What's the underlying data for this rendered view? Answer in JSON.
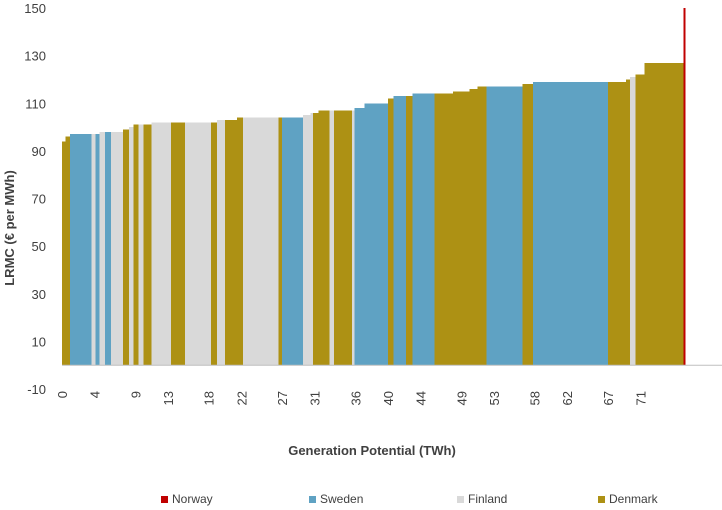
{
  "chart_data": {
    "type": "bar",
    "title": "",
    "xlabel": "Generation Potential (TWh)",
    "ylabel": "LRMC (€ per MWh)",
    "ylim": [
      -10,
      150
    ],
    "yticks": [
      -10,
      10,
      30,
      50,
      70,
      90,
      110,
      130,
      150
    ],
    "xlim": [
      0,
      81
    ],
    "xticks": [
      "0",
      "4",
      "9",
      "13",
      "18",
      "22",
      "27",
      "31",
      "36",
      "40",
      "44",
      "49",
      "53",
      "58",
      "62",
      "67",
      "71"
    ],
    "grid": false,
    "legend_position": "bottom",
    "colors": {
      "Norway": "#c00000",
      "Sweden": "#5fa2c3",
      "Finland": "#d9d9d9",
      "Denmark": "#ad9114"
    },
    "series": [
      {
        "name": "Norway"
      },
      {
        "name": "Sweden"
      },
      {
        "name": "Finland"
      },
      {
        "name": "Denmark"
      }
    ],
    "segments": [
      {
        "country": "Denmark",
        "x0": 0.0,
        "x1": 0.4,
        "lrmc": 94
      },
      {
        "country": "Denmark",
        "x0": 0.4,
        "x1": 1.0,
        "lrmc": 96
      },
      {
        "country": "Sweden",
        "x0": 1.0,
        "x1": 3.6,
        "lrmc": 97
      },
      {
        "country": "Finland",
        "x0": 3.6,
        "x1": 4.1,
        "lrmc": 97
      },
      {
        "country": "Sweden",
        "x0": 4.1,
        "x1": 4.6,
        "lrmc": 97
      },
      {
        "country": "Finland",
        "x0": 4.6,
        "x1": 5.3,
        "lrmc": 98
      },
      {
        "country": "Sweden",
        "x0": 5.3,
        "x1": 6.0,
        "lrmc": 98
      },
      {
        "country": "Finland",
        "x0": 6.0,
        "x1": 7.5,
        "lrmc": 98
      },
      {
        "country": "Denmark",
        "x0": 7.5,
        "x1": 8.2,
        "lrmc": 99
      },
      {
        "country": "Finland",
        "x0": 8.2,
        "x1": 8.8,
        "lrmc": 100
      },
      {
        "country": "Denmark",
        "x0": 8.8,
        "x1": 9.4,
        "lrmc": 101
      },
      {
        "country": "Finland",
        "x0": 9.4,
        "x1": 10.0,
        "lrmc": 101
      },
      {
        "country": "Denmark",
        "x0": 10.0,
        "x1": 11.0,
        "lrmc": 101
      },
      {
        "country": "Finland",
        "x0": 11.0,
        "x1": 13.4,
        "lrmc": 102
      },
      {
        "country": "Denmark",
        "x0": 13.4,
        "x1": 15.1,
        "lrmc": 102
      },
      {
        "country": "Finland",
        "x0": 15.1,
        "x1": 18.3,
        "lrmc": 102
      },
      {
        "country": "Denmark",
        "x0": 18.3,
        "x1": 19.0,
        "lrmc": 102
      },
      {
        "country": "Finland",
        "x0": 19.0,
        "x1": 20.0,
        "lrmc": 103
      },
      {
        "country": "Denmark",
        "x0": 20.0,
        "x1": 21.5,
        "lrmc": 103
      },
      {
        "country": "Denmark",
        "x0": 21.5,
        "x1": 22.2,
        "lrmc": 104
      },
      {
        "country": "Finland",
        "x0": 22.2,
        "x1": 26.6,
        "lrmc": 104
      },
      {
        "country": "Denmark",
        "x0": 26.6,
        "x1": 27.0,
        "lrmc": 104
      },
      {
        "country": "Sweden",
        "x0": 27.0,
        "x1": 29.6,
        "lrmc": 104
      },
      {
        "country": "Finland",
        "x0": 29.6,
        "x1": 30.5,
        "lrmc": 105
      },
      {
        "country": "Finland",
        "x0": 30.5,
        "x1": 30.8,
        "lrmc": 106
      },
      {
        "country": "Denmark",
        "x0": 30.8,
        "x1": 31.5,
        "lrmc": 106
      },
      {
        "country": "Denmark",
        "x0": 31.5,
        "x1": 32.8,
        "lrmc": 107
      },
      {
        "country": "Finland",
        "x0": 32.8,
        "x1": 33.4,
        "lrmc": 107
      },
      {
        "country": "Denmark",
        "x0": 33.4,
        "x1": 35.6,
        "lrmc": 107
      },
      {
        "country": "Finland",
        "x0": 35.6,
        "x1": 35.9,
        "lrmc": 107
      },
      {
        "country": "Sweden",
        "x0": 35.9,
        "x1": 37.1,
        "lrmc": 108
      },
      {
        "country": "Sweden",
        "x0": 37.1,
        "x1": 40.0,
        "lrmc": 110
      },
      {
        "country": "Denmark",
        "x0": 40.0,
        "x1": 40.7,
        "lrmc": 112
      },
      {
        "country": "Sweden",
        "x0": 40.7,
        "x1": 42.2,
        "lrmc": 113
      },
      {
        "country": "Denmark",
        "x0": 42.2,
        "x1": 43.0,
        "lrmc": 113
      },
      {
        "country": "Sweden",
        "x0": 43.0,
        "x1": 45.7,
        "lrmc": 114
      },
      {
        "country": "Denmark",
        "x0": 45.7,
        "x1": 48.0,
        "lrmc": 114
      },
      {
        "country": "Denmark",
        "x0": 48.0,
        "x1": 50.0,
        "lrmc": 115
      },
      {
        "country": "Denmark",
        "x0": 50.0,
        "x1": 51.0,
        "lrmc": 116
      },
      {
        "country": "Denmark",
        "x0": 51.0,
        "x1": 52.1,
        "lrmc": 117
      },
      {
        "country": "Sweden",
        "x0": 52.1,
        "x1": 56.5,
        "lrmc": 117
      },
      {
        "country": "Denmark",
        "x0": 56.5,
        "x1": 57.8,
        "lrmc": 118
      },
      {
        "country": "Sweden",
        "x0": 57.8,
        "x1": 67.0,
        "lrmc": 119
      },
      {
        "country": "Denmark",
        "x0": 67.0,
        "x1": 69.2,
        "lrmc": 119
      },
      {
        "country": "Denmark",
        "x0": 69.2,
        "x1": 69.7,
        "lrmc": 120
      },
      {
        "country": "Finland",
        "x0": 69.7,
        "x1": 70.4,
        "lrmc": 121
      },
      {
        "country": "Denmark",
        "x0": 70.4,
        "x1": 71.5,
        "lrmc": 122
      },
      {
        "country": "Denmark",
        "x0": 71.5,
        "x1": 76.3,
        "lrmc": 127
      },
      {
        "country": "Norway",
        "x0": 76.3,
        "x1": 76.5,
        "lrmc": 150
      }
    ]
  }
}
